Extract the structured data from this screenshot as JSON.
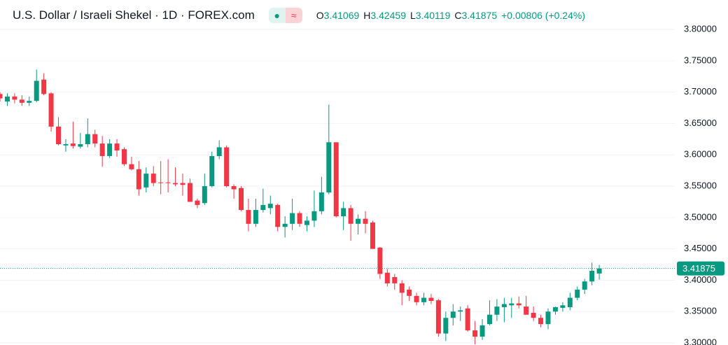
{
  "chart_data": {
    "type": "candlestick",
    "title": "U.S. Dollar / Israeli Shekel · 1D · FOREX.com",
    "ohlc_letters": [
      "O",
      "H",
      "L",
      "C"
    ],
    "change_label": "+0.00806 (+0.24%)",
    "up_color": "#089981",
    "down_color": "#f23645",
    "grid": true,
    "ylim": [
      3.2967,
      3.8469
    ],
    "yticks": [
      {
        "value": 3.3,
        "label": "3.30000"
      },
      {
        "value": 3.35,
        "label": "3.35000"
      },
      {
        "value": 3.4,
        "label": "3.40000"
      },
      {
        "value": 3.45,
        "label": "3.45000"
      },
      {
        "value": 3.5,
        "label": "3.50000"
      },
      {
        "value": 3.55,
        "label": "3.55000"
      },
      {
        "value": 3.6,
        "label": "3.60000"
      },
      {
        "value": 3.65,
        "label": "3.65000"
      },
      {
        "value": 3.7,
        "label": "3.70000"
      },
      {
        "value": 3.75,
        "label": "3.75000"
      },
      {
        "value": 3.8,
        "label": "3.80000"
      }
    ],
    "open": [
      3.697,
      3.685,
      3.693,
      3.688,
      3.683,
      3.686,
      3.72,
      3.698,
      3.645,
      3.615,
      3.618,
      3.613,
      3.617,
      3.633,
      3.618,
      3.598,
      3.618,
      3.609,
      3.585,
      3.577,
      3.548,
      3.57,
      3.556,
      3.556,
      3.555,
      3.555,
      3.555,
      3.527,
      3.523,
      3.55,
      3.598,
      3.612,
      3.55,
      3.547,
      3.512,
      3.49,
      3.512,
      3.515,
      3.52,
      3.485,
      3.49,
      3.507,
      3.488,
      3.495,
      3.51,
      3.54,
      3.62,
      3.502,
      3.515,
      3.49,
      3.498,
      3.492,
      3.452,
      3.412,
      3.405,
      3.395,
      3.385,
      3.375,
      3.365,
      3.372,
      3.368,
      3.315,
      3.34,
      3.35,
      3.355,
      3.32,
      3.31,
      3.33,
      3.345,
      3.357,
      3.36,
      3.363,
      3.358,
      3.348,
      3.34,
      3.33,
      3.35,
      3.356,
      3.357,
      3.372,
      3.385,
      3.398,
      3.41069
    ],
    "high": [
      3.7,
      3.698,
      3.698,
      3.695,
      3.693,
      3.736,
      3.73,
      3.7,
      3.66,
      3.625,
      3.653,
      3.635,
      3.658,
      3.64,
      3.63,
      3.625,
      3.625,
      3.612,
      3.597,
      3.59,
      3.58,
      3.582,
      3.59,
      3.593,
      3.58,
      3.57,
      3.562,
      3.53,
      3.57,
      3.605,
      3.623,
      3.615,
      3.553,
      3.55,
      3.53,
      3.53,
      3.546,
      3.535,
      3.522,
      3.502,
      3.53,
      3.51,
      3.502,
      3.543,
      3.565,
      3.68,
      3.62,
      3.525,
      3.52,
      3.505,
      3.51,
      3.495,
      3.453,
      3.418,
      3.41,
      3.4,
      3.39,
      3.38,
      3.38,
      3.378,
      3.37,
      3.35,
      3.362,
      3.358,
      3.36,
      3.335,
      3.338,
      3.368,
      3.37,
      3.372,
      3.372,
      3.374,
      3.375,
      3.358,
      3.345,
      3.355,
      3.358,
      3.365,
      3.38,
      3.39,
      3.402,
      3.428,
      3.42459
    ],
    "low": [
      3.685,
      3.678,
      3.682,
      3.678,
      3.678,
      3.684,
      3.695,
      3.637,
      3.615,
      3.605,
      3.61,
      3.61,
      3.612,
      3.612,
      3.581,
      3.595,
      3.597,
      3.582,
      3.575,
      3.535,
      3.54,
      3.55,
      3.537,
      3.54,
      3.55,
      3.535,
      3.525,
      3.515,
      3.52,
      3.548,
      3.593,
      3.548,
      3.53,
      3.51,
      3.478,
      3.485,
      3.508,
      3.505,
      3.478,
      3.468,
      3.48,
      3.485,
      3.478,
      3.485,
      3.505,
      3.537,
      3.5,
      3.48,
      3.463,
      3.473,
      3.475,
      3.45,
      3.402,
      3.39,
      3.385,
      3.36,
      3.367,
      3.36,
      3.36,
      3.362,
      3.31,
      3.303,
      3.328,
      3.335,
      3.318,
      3.298,
      3.305,
      3.328,
      3.335,
      3.333,
      3.34,
      3.355,
      3.345,
      3.335,
      3.325,
      3.322,
      3.345,
      3.35,
      3.352,
      3.368,
      3.378,
      3.392,
      3.40119
    ],
    "close": [
      3.69,
      3.693,
      3.688,
      3.683,
      3.686,
      3.718,
      3.697,
      3.645,
      3.617,
      3.617,
      3.614,
      3.617,
      3.633,
      3.618,
      3.598,
      3.618,
      3.607,
      3.585,
      3.577,
      3.545,
      3.57,
      3.555,
      3.555,
      3.555,
      3.553,
      3.552,
      3.525,
      3.52,
      3.55,
      3.598,
      3.612,
      3.55,
      3.545,
      3.512,
      3.49,
      3.512,
      3.52,
      3.522,
      3.485,
      3.49,
      3.507,
      3.49,
      3.495,
      3.51,
      3.54,
      3.62,
      3.502,
      3.515,
      3.49,
      3.498,
      3.49,
      3.45,
      3.41,
      3.395,
      3.395,
      3.38,
      3.375,
      3.365,
      3.372,
      3.367,
      3.315,
      3.34,
      3.35,
      3.352,
      3.32,
      3.31,
      3.328,
      3.345,
      3.358,
      3.362,
      3.363,
      3.36,
      3.345,
      3.34,
      3.33,
      3.35,
      3.357,
      3.36,
      3.372,
      3.385,
      3.398,
      3.415,
      3.41875
    ]
  }
}
